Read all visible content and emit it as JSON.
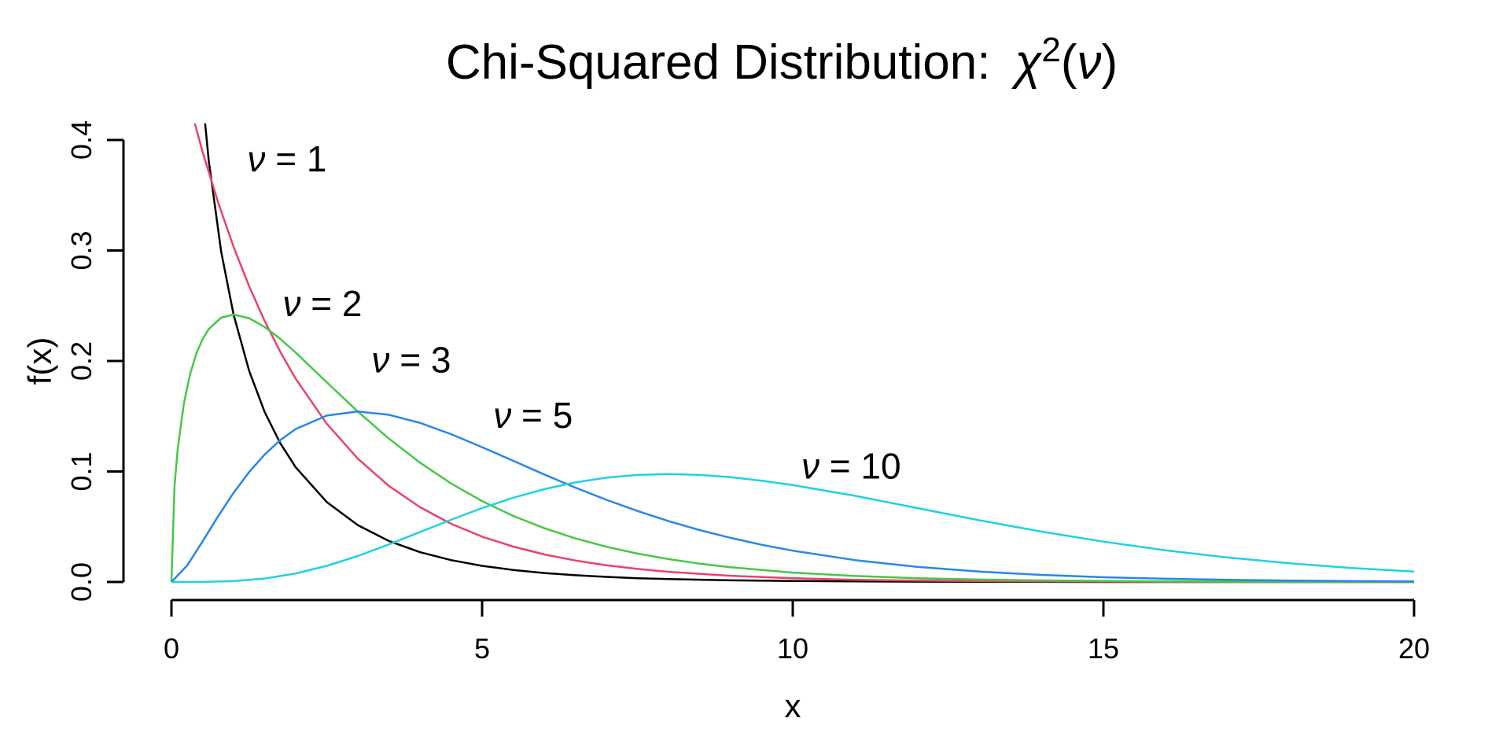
{
  "figure": {
    "background": "#ffffff",
    "title": {
      "text": "Chi-Squared Distribution:",
      "chi": "χ",
      "exponent": "2",
      "arg_open": "(",
      "nu": "ν",
      "arg_close": ")",
      "full": "Chi-Squared Distribution: χ²(ν)"
    },
    "xlabel": "x",
    "ylabel": "f(x)"
  },
  "chart_data": {
    "type": "line",
    "title": "Chi-Squared Distribution: χ²(ν)",
    "xlabel": "x",
    "ylabel": "f(x)",
    "xlim": [
      0,
      20
    ],
    "ylim": [
      0,
      0.4
    ],
    "grid": false,
    "legend_position": "inline-annotations",
    "x_ticks": {
      "values": [
        0,
        5,
        10,
        15,
        20
      ],
      "labels": [
        "0",
        "5",
        "10",
        "15",
        "20"
      ]
    },
    "y_ticks": {
      "values": [
        0.0,
        0.1,
        0.2,
        0.3,
        0.4
      ],
      "labels": [
        "0.0",
        "0.1",
        "0.2",
        "0.3",
        "0.4"
      ]
    },
    "series": [
      {
        "name": "chi-squared df=1",
        "df": 1,
        "color": "#000000",
        "x": [
          0.05,
          0.1,
          0.2,
          0.3,
          0.4,
          0.5,
          0.6,
          0.8,
          1,
          1.25,
          1.5,
          1.75,
          2,
          2.5,
          3,
          3.5,
          4,
          4.5,
          5,
          5.5,
          6,
          6.5,
          7,
          7.5,
          8,
          9,
          10,
          11,
          12,
          14,
          16,
          18,
          20
        ],
        "f": [
          1.7401,
          1.2001,
          0.8072,
          0.6269,
          0.5164,
          0.4394,
          0.3815,
          0.299,
          0.242,
          0.191,
          0.1539,
          0.1257,
          0.1038,
          0.0723,
          0.0514,
          0.0371,
          0.027,
          0.0198,
          0.0146,
          0.0109,
          0.0081,
          0.0061,
          0.0046,
          0.0034,
          0.0026,
          0.0015,
          0.0009,
          0.0005,
          0.0003,
          0.0001,
          0.0,
          0.0,
          0.0
        ]
      },
      {
        "name": "chi-squared df=2",
        "df": 2,
        "color": "#E8436A",
        "x": [
          0,
          0.25,
          0.5,
          0.75,
          1,
          1.25,
          1.5,
          1.75,
          2,
          2.5,
          3,
          3.5,
          4,
          4.5,
          5,
          5.5,
          6,
          6.5,
          7,
          7.5,
          8,
          9,
          10,
          11,
          12,
          14,
          16,
          18,
          20
        ],
        "f": [
          0.5,
          0.4412,
          0.3894,
          0.3436,
          0.3033,
          0.2676,
          0.2362,
          0.2084,
          0.1839,
          0.1432,
          0.1116,
          0.0869,
          0.0677,
          0.0527,
          0.041,
          0.032,
          0.0249,
          0.0194,
          0.0151,
          0.0118,
          0.0092,
          0.0056,
          0.0034,
          0.002,
          0.0012,
          0.0005,
          0.0002,
          0.0001,
          0.0
        ]
      },
      {
        "name": "chi-squared df=3",
        "df": 3,
        "color": "#46C846",
        "x": [
          0,
          0.05,
          0.1,
          0.2,
          0.3,
          0.4,
          0.5,
          0.6,
          0.8,
          1,
          1.25,
          1.5,
          1.75,
          2,
          2.5,
          3,
          3.5,
          4,
          4.5,
          5,
          5.5,
          6,
          6.5,
          7,
          7.5,
          8,
          8.5,
          9,
          10,
          11,
          12,
          13,
          14,
          16,
          18,
          20
        ],
        "f": [
          0,
          0.087,
          0.12,
          0.1614,
          0.1881,
          0.2066,
          0.2197,
          0.2289,
          0.2392,
          0.242,
          0.2387,
          0.2308,
          0.22,
          0.2076,
          0.1807,
          0.1542,
          0.1297,
          0.108,
          0.0892,
          0.0732,
          0.0598,
          0.0487,
          0.0394,
          0.0319,
          0.0257,
          0.0207,
          0.0166,
          0.0133,
          0.0085,
          0.0054,
          0.0034,
          0.0022,
          0.0014,
          0.0005,
          0.0002,
          0.0001
        ]
      },
      {
        "name": "chi-squared df=5",
        "df": 5,
        "color": "#2887E8",
        "x": [
          0,
          0.25,
          0.5,
          0.75,
          1,
          1.25,
          1.5,
          1.75,
          2,
          2.5,
          3,
          3.5,
          4,
          4.5,
          5,
          5.5,
          6,
          6.5,
          7,
          7.5,
          8,
          8.5,
          9,
          9.5,
          10,
          11,
          12,
          13,
          14,
          15,
          16,
          17,
          18,
          19,
          20
        ],
        "f": [
          0,
          0.0147,
          0.0366,
          0.0594,
          0.0807,
          0.0995,
          0.1154,
          0.1283,
          0.1384,
          0.1506,
          0.1542,
          0.1513,
          0.144,
          0.1338,
          0.122,
          0.1097,
          0.0973,
          0.0854,
          0.0744,
          0.0643,
          0.0551,
          0.047,
          0.0399,
          0.0337,
          0.0283,
          0.0198,
          0.0137,
          0.0094,
          0.0064,
          0.0043,
          0.0029,
          0.0019,
          0.0013,
          0.0008,
          0.0005
        ]
      },
      {
        "name": "chi-squared df=10",
        "df": 10,
        "color": "#20D2DE",
        "x": [
          0,
          0.5,
          1,
          1.5,
          2,
          2.5,
          3,
          3.5,
          4,
          4.5,
          5,
          5.5,
          6,
          6.5,
          7,
          7.5,
          8,
          8.5,
          9,
          9.5,
          10,
          11,
          12,
          13,
          14,
          15,
          16,
          17,
          18,
          19,
          20
        ],
        "f": [
          0,
          0.0001,
          0.0008,
          0.0031,
          0.0077,
          0.0146,
          0.0235,
          0.034,
          0.0451,
          0.0563,
          0.0668,
          0.0762,
          0.084,
          0.0901,
          0.0944,
          0.0969,
          0.0977,
          0.0969,
          0.0949,
          0.0917,
          0.0877,
          0.078,
          0.0669,
          0.0559,
          0.0456,
          0.0365,
          0.0286,
          0.0221,
          0.0169,
          0.0127,
          0.0095
        ]
      }
    ],
    "annotations": [
      {
        "nu": "ν",
        "rest": " = 1",
        "text": "ν = 1",
        "x": 1.86,
        "y": 0.383,
        "color": "#000000"
      },
      {
        "nu": "ν",
        "rest": " = 2",
        "text": "ν = 2",
        "x": 2.43,
        "y": 0.252,
        "color": "#FF0000"
      },
      {
        "nu": "ν",
        "rest": " = 3",
        "text": "ν = 3",
        "x": 3.86,
        "y": 0.201,
        "color": "#00E000"
      },
      {
        "nu": "ν",
        "rest": " = 5",
        "text": "ν = 5",
        "x": 5.82,
        "y": 0.151,
        "color": "#0000EE"
      },
      {
        "nu": "ν",
        "rest": " = 10",
        "text": "ν = 10",
        "x": 10.94,
        "y": 0.105,
        "color": "#9B30D5"
      }
    ]
  }
}
